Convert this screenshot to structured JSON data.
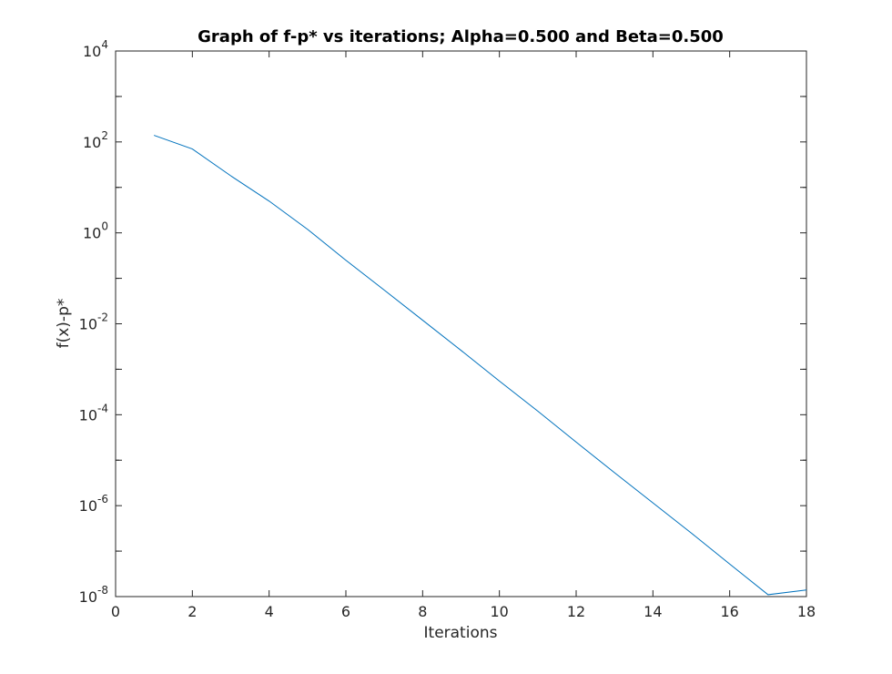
{
  "chart_data": {
    "type": "line",
    "title": "Graph of f-p* vs iterations; Alpha=0.500 and Beta=0.500",
    "xlabel": "Iterations",
    "ylabel": "f(x)-p*",
    "xlim": [
      0,
      18
    ],
    "ylim_log10": [
      -8,
      4
    ],
    "y_scale": "log",
    "grid": false,
    "x_ticks": [
      0,
      2,
      4,
      6,
      8,
      10,
      12,
      14,
      16,
      18
    ],
    "y_ticks": [
      {
        "base": "10",
        "exp": "4"
      },
      {
        "base": "10",
        "exp": "2"
      },
      {
        "base": "10",
        "exp": "0"
      },
      {
        "base": "10",
        "exp": "-2"
      },
      {
        "base": "10",
        "exp": "-4"
      },
      {
        "base": "10",
        "exp": "-6"
      },
      {
        "base": "10",
        "exp": "-8"
      }
    ],
    "series": [
      {
        "color": "#0072BD",
        "x": [
          1,
          2,
          3,
          4,
          5,
          6,
          7,
          8,
          9,
          10,
          11,
          12,
          13,
          14,
          15,
          16,
          17,
          18
        ],
        "y": [
          140,
          70,
          18,
          5,
          1.2,
          0.25,
          0.055,
          0.012,
          0.0026,
          0.00055,
          0.00012,
          2.5e-05,
          5.3e-06,
          1.15e-06,
          2.5e-07,
          5.2e-08,
          1.1e-08,
          1.4e-08
        ]
      }
    ]
  }
}
